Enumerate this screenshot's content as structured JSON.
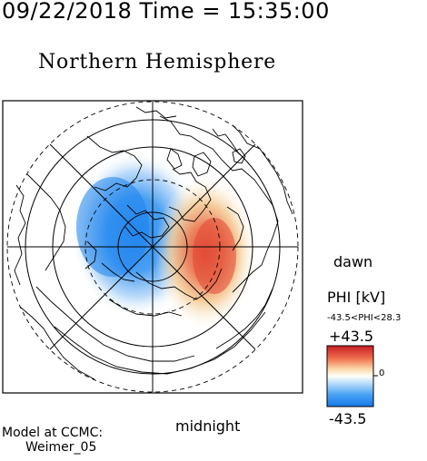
{
  "header": {
    "timestamp": "09/22/2018 Time = 15:35:00",
    "title": "Northern Hemisphere"
  },
  "map": {
    "dawn_label": "dawn",
    "midnight_label": "midnight"
  },
  "colorbar": {
    "quantity_label": "PHI [kV]",
    "range_label": "-43.5<PHI<28.3",
    "max_label": "+43.5",
    "min_label": "-43.5",
    "zero_label": "0",
    "phi_min": -43.5,
    "phi_max": 28.3,
    "colors": {
      "negative": "#2a8cf0",
      "zero": "#fffef8",
      "positive": "#e0423a"
    }
  },
  "footer": {
    "model_line1": "Model at CCMC:",
    "model_line2": "Weimer_05"
  }
}
